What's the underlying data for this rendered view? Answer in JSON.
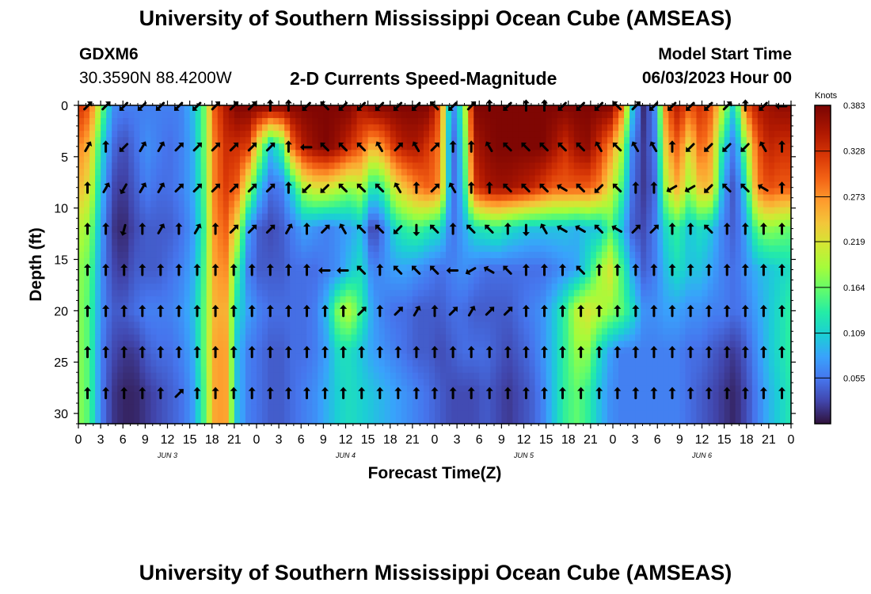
{
  "header": {
    "title": "University of Southern Mississippi Ocean Cube (AMSEAS)",
    "station": "GDXM6",
    "coords": "30.3590N  88.4200W",
    "subtitle": "2-D Currents Speed-Magnitude",
    "model_start_label": "Model Start Time",
    "model_start_value": "06/03/2023 Hour 00"
  },
  "footer": {
    "title": "University of Southern Mississippi Ocean Cube (AMSEAS)"
  },
  "chart_data": {
    "type": "heatmap",
    "title": "2-D Currents Speed-Magnitude",
    "xlabel": "Forecast Time(Z)",
    "ylabel": "Depth (ft)",
    "xlim": [
      0,
      96
    ],
    "ylim": [
      0,
      31
    ],
    "x_ticks": [
      "0",
      "3",
      "6",
      "9",
      "12",
      "15",
      "18",
      "21",
      "0",
      "3",
      "6",
      "9",
      "12",
      "15",
      "18",
      "21",
      "0",
      "3",
      "6",
      "9",
      "12",
      "15",
      "18",
      "21",
      "0",
      "3",
      "6",
      "9",
      "12",
      "15",
      "18",
      "21",
      "0"
    ],
    "y_ticks": [
      "0",
      "5",
      "10",
      "15",
      "20",
      "25",
      "30"
    ],
    "day_labels": [
      "JUN 3",
      "JUN 4",
      "JUN 5",
      "JUN 6"
    ],
    "colorbar": {
      "unit": "Knots",
      "tick_labels": [
        "0.383",
        "0.328",
        "0.273",
        "0.219",
        "0.164",
        "0.109",
        "0.055"
      ],
      "ticks": [
        0.383,
        0.328,
        0.273,
        0.219,
        0.164,
        0.109,
        0.055
      ],
      "min": 0.0,
      "max": 0.383
    },
    "depth_rows": [
      0,
      4,
      8,
      12,
      16,
      20,
      24,
      28
    ],
    "speed_rows": [
      [
        0.33,
        0.3,
        0.18,
        0.07,
        0.06,
        0.06,
        0.06,
        0.06,
        0.06,
        0.06,
        0.09,
        0.15,
        0.3,
        0.35,
        0.38,
        0.38,
        0.38,
        0.38,
        0.38,
        0.38,
        0.38,
        0.38,
        0.38,
        0.38,
        0.38,
        0.35,
        0.38,
        0.38,
        0.38,
        0.38,
        0.38,
        0.38,
        0.3,
        0.05,
        0.15,
        0.38,
        0.38,
        0.38,
        0.38,
        0.38,
        0.38,
        0.38,
        0.38,
        0.38,
        0.38,
        0.38,
        0.38,
        0.38,
        0.3,
        0.1,
        0.01,
        0.07,
        0.3,
        0.35,
        0.3,
        0.33,
        0.3,
        0.2,
        0.1,
        0.3,
        0.35,
        0.36,
        0.37,
        0.37
      ],
      [
        0.28,
        0.25,
        0.12,
        0.05,
        0.03,
        0.05,
        0.07,
        0.06,
        0.05,
        0.06,
        0.08,
        0.15,
        0.28,
        0.33,
        0.33,
        0.32,
        0.2,
        0.1,
        0.15,
        0.3,
        0.35,
        0.37,
        0.38,
        0.36,
        0.33,
        0.3,
        0.25,
        0.28,
        0.33,
        0.35,
        0.35,
        0.32,
        0.28,
        0.03,
        0.12,
        0.35,
        0.37,
        0.38,
        0.38,
        0.38,
        0.38,
        0.38,
        0.36,
        0.33,
        0.36,
        0.37,
        0.33,
        0.28,
        0.2,
        0.06,
        0.02,
        0.06,
        0.25,
        0.3,
        0.22,
        0.3,
        0.26,
        0.12,
        0.05,
        0.18,
        0.3,
        0.34,
        0.33,
        0.33
      ],
      [
        0.25,
        0.22,
        0.1,
        0.03,
        0.02,
        0.04,
        0.06,
        0.05,
        0.05,
        0.06,
        0.08,
        0.14,
        0.28,
        0.32,
        0.3,
        0.2,
        0.1,
        0.05,
        0.06,
        0.12,
        0.2,
        0.22,
        0.22,
        0.2,
        0.18,
        0.2,
        0.12,
        0.15,
        0.22,
        0.25,
        0.28,
        0.3,
        0.27,
        0.04,
        0.1,
        0.32,
        0.35,
        0.36,
        0.36,
        0.35,
        0.34,
        0.32,
        0.3,
        0.3,
        0.3,
        0.3,
        0.28,
        0.22,
        0.15,
        0.05,
        0.02,
        0.05,
        0.2,
        0.26,
        0.18,
        0.25,
        0.24,
        0.08,
        0.03,
        0.12,
        0.28,
        0.31,
        0.3,
        0.3
      ],
      [
        0.2,
        0.18,
        0.08,
        0.02,
        0.01,
        0.03,
        0.04,
        0.04,
        0.04,
        0.05,
        0.07,
        0.13,
        0.27,
        0.3,
        0.22,
        0.08,
        0.04,
        0.03,
        0.04,
        0.06,
        0.08,
        0.07,
        0.06,
        0.07,
        0.08,
        0.1,
        0.02,
        0.06,
        0.12,
        0.14,
        0.15,
        0.13,
        0.12,
        0.05,
        0.08,
        0.12,
        0.13,
        0.14,
        0.12,
        0.11,
        0.1,
        0.1,
        0.1,
        0.1,
        0.09,
        0.1,
        0.1,
        0.15,
        0.1,
        0.04,
        0.03,
        0.06,
        0.12,
        0.14,
        0.1,
        0.12,
        0.1,
        0.06,
        0.04,
        0.08,
        0.16,
        0.18,
        0.17,
        0.16
      ],
      [
        0.18,
        0.16,
        0.07,
        0.03,
        0.02,
        0.04,
        0.04,
        0.04,
        0.05,
        0.06,
        0.08,
        0.14,
        0.26,
        0.28,
        0.15,
        0.06,
        0.04,
        0.04,
        0.04,
        0.05,
        0.05,
        0.05,
        0.06,
        0.07,
        0.1,
        0.12,
        0.06,
        0.07,
        0.08,
        0.08,
        0.07,
        0.06,
        0.05,
        0.06,
        0.07,
        0.06,
        0.05,
        0.05,
        0.05,
        0.05,
        0.05,
        0.05,
        0.06,
        0.07,
        0.08,
        0.12,
        0.18,
        0.22,
        0.15,
        0.08,
        0.04,
        0.06,
        0.1,
        0.12,
        0.1,
        0.1,
        0.08,
        0.06,
        0.05,
        0.07,
        0.09,
        0.1,
        0.11,
        0.12
      ],
      [
        0.18,
        0.15,
        0.07,
        0.04,
        0.04,
        0.05,
        0.06,
        0.06,
        0.06,
        0.07,
        0.09,
        0.15,
        0.25,
        0.26,
        0.12,
        0.08,
        0.06,
        0.05,
        0.05,
        0.05,
        0.05,
        0.06,
        0.1,
        0.18,
        0.2,
        0.14,
        0.08,
        0.06,
        0.05,
        0.05,
        0.04,
        0.04,
        0.04,
        0.05,
        0.05,
        0.04,
        0.04,
        0.04,
        0.04,
        0.05,
        0.06,
        0.07,
        0.1,
        0.14,
        0.2,
        0.22,
        0.2,
        0.18,
        0.16,
        0.12,
        0.07,
        0.07,
        0.08,
        0.08,
        0.07,
        0.07,
        0.06,
        0.06,
        0.05,
        0.06,
        0.08,
        0.1,
        0.12,
        0.14
      ],
      [
        0.18,
        0.15,
        0.06,
        0.03,
        0.02,
        0.02,
        0.04,
        0.05,
        0.05,
        0.06,
        0.08,
        0.15,
        0.26,
        0.27,
        0.1,
        0.06,
        0.05,
        0.04,
        0.04,
        0.05,
        0.05,
        0.06,
        0.08,
        0.12,
        0.12,
        0.1,
        0.08,
        0.07,
        0.06,
        0.05,
        0.04,
        0.04,
        0.03,
        0.04,
        0.05,
        0.05,
        0.05,
        0.04,
        0.03,
        0.04,
        0.05,
        0.07,
        0.1,
        0.14,
        0.18,
        0.18,
        0.12,
        0.08,
        0.06,
        0.06,
        0.06,
        0.06,
        0.06,
        0.06,
        0.05,
        0.05,
        0.04,
        0.03,
        0.02,
        0.04,
        0.07,
        0.1,
        0.12,
        0.14
      ],
      [
        0.18,
        0.15,
        0.06,
        0.02,
        0.01,
        0.01,
        0.02,
        0.03,
        0.04,
        0.05,
        0.07,
        0.14,
        0.26,
        0.27,
        0.1,
        0.06,
        0.05,
        0.04,
        0.04,
        0.05,
        0.06,
        0.07,
        0.09,
        0.11,
        0.12,
        0.11,
        0.1,
        0.09,
        0.08,
        0.07,
        0.06,
        0.05,
        0.04,
        0.03,
        0.03,
        0.03,
        0.04,
        0.03,
        0.02,
        0.03,
        0.04,
        0.06,
        0.1,
        0.14,
        0.16,
        0.14,
        0.1,
        0.07,
        0.06,
        0.06,
        0.06,
        0.06,
        0.06,
        0.06,
        0.05,
        0.04,
        0.03,
        0.02,
        0.01,
        0.03,
        0.06,
        0.09,
        0.11,
        0.13
      ]
    ],
    "arrow_columns": [
      1,
      3,
      5,
      6,
      8,
      9,
      10,
      12,
      13,
      14,
      15,
      16,
      17,
      18,
      19,
      20,
      21,
      22,
      23,
      24,
      25,
      26,
      27,
      28,
      29,
      30,
      31,
      32,
      33,
      34,
      35,
      36,
      37,
      38,
      39,
      40,
      41,
      42,
      43
    ],
    "arrow_rows": [
      [
        -45,
        -45,
        135,
        135,
        135,
        135,
        135,
        -45,
        -45,
        -45,
        -90,
        -90,
        135,
        -135,
        135,
        135,
        135,
        135,
        135,
        -135,
        135,
        -45,
        -90,
        135,
        -90,
        -90,
        135,
        135,
        135,
        -135,
        -45,
        135,
        135,
        135,
        135,
        -45,
        -90,
        135,
        180
      ],
      [
        -60,
        -90,
        135,
        -60,
        -60,
        -45,
        -45,
        -45,
        -45,
        -45,
        -45,
        -90,
        180,
        -135,
        -135,
        -135,
        -120,
        -45,
        -120,
        -45,
        -90,
        -90,
        -120,
        -135,
        -135,
        -135,
        -135,
        -135,
        -120,
        -135,
        -120,
        -120,
        -90,
        135,
        135,
        135,
        135,
        -120,
        -90
      ],
      [
        -90,
        -60,
        120,
        -60,
        -60,
        -45,
        -45,
        -45,
        -45,
        -45,
        -45,
        -90,
        135,
        135,
        -135,
        -135,
        -135,
        -120,
        -90,
        -45,
        -120,
        -90,
        -90,
        -135,
        -135,
        -135,
        -150,
        -135,
        135,
        -135,
        -90,
        -90,
        150,
        150,
        135,
        -135,
        -135,
        -150,
        -90
      ],
      [
        -90,
        -90,
        105,
        -90,
        -60,
        -90,
        -60,
        -90,
        -45,
        -45,
        -45,
        -60,
        -90,
        -45,
        -120,
        -135,
        -135,
        135,
        90,
        -135,
        -90,
        -135,
        -135,
        -90,
        90,
        -120,
        -150,
        -150,
        -135,
        -150,
        -45,
        -45,
        -90,
        -90,
        -135,
        -90,
        -90,
        -90,
        -90
      ],
      [
        -90,
        -90,
        -90,
        -90,
        -90,
        -90,
        -90,
        -90,
        -90,
        -90,
        -90,
        -90,
        -90,
        180,
        180,
        -135,
        -90,
        -135,
        -135,
        -135,
        180,
        150,
        -150,
        -135,
        -90,
        -90,
        -90,
        -135,
        -90,
        -90,
        -90,
        -90,
        -90,
        -90,
        -90,
        -90,
        -90,
        -90,
        -90
      ],
      [
        -90,
        -90,
        -90,
        -90,
        -90,
        -90,
        -90,
        -90,
        -90,
        -90,
        -90,
        -90,
        -90,
        -90,
        -90,
        -45,
        -90,
        -45,
        -60,
        -90,
        -45,
        -60,
        -45,
        -45,
        -90,
        -90,
        -90,
        -90,
        -90,
        -90,
        -90,
        -90,
        -90,
        -90,
        -90,
        -90,
        -90,
        -90,
        -90
      ],
      [
        -90,
        -90,
        -90,
        -90,
        -90,
        -90,
        -90,
        -90,
        -90,
        -90,
        -90,
        -90,
        -90,
        -90,
        -90,
        -90,
        -90,
        -90,
        -90,
        -90,
        -90,
        -90,
        -90,
        -90,
        -90,
        -90,
        -90,
        -90,
        -90,
        -90,
        -90,
        -90,
        -90,
        -90,
        -90,
        -90,
        -90,
        -90,
        -90
      ],
      [
        -90,
        -90,
        -90,
        -90,
        -90,
        -45,
        -90,
        -90,
        -90,
        -90,
        -90,
        -90,
        -90,
        -90,
        -90,
        -90,
        -90,
        -90,
        -90,
        -90,
        -90,
        -90,
        -90,
        -90,
        -90,
        -90,
        -90,
        -90,
        -90,
        -90,
        -90,
        -90,
        -90,
        -90,
        -90,
        -90,
        -90,
        -90,
        -90
      ]
    ]
  }
}
